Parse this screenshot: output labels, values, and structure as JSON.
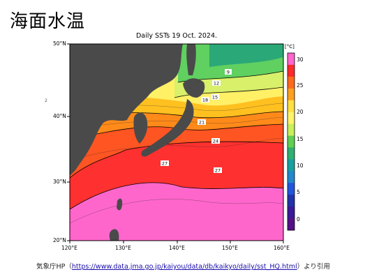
{
  "slide": {
    "title": "海面水温"
  },
  "map": {
    "title": "Daily SSTs 19 Oct. 2024.",
    "unit": "[°C]",
    "side_mark": "2",
    "lat_labels": [
      "50°N",
      "40°N",
      "30°N",
      "20°N"
    ],
    "lon_labels": [
      "120°E",
      "130°E",
      "140°E",
      "150°E",
      "160°E"
    ],
    "contour_labels": [
      "9",
      "12",
      "15",
      "18",
      "21",
      "24",
      "27",
      "27"
    ],
    "colorbar": {
      "ticks": [
        "30",
        "25",
        "20",
        "15",
        "10",
        "5",
        "0"
      ],
      "colors": [
        "#ff66cc",
        "#ff2a2a",
        "#ff6a1a",
        "#ffa020",
        "#ffe040",
        "#fff36a",
        "#c8f05a",
        "#5fd050",
        "#2fb070",
        "#18a0a0",
        "#2288cc",
        "#2255dd",
        "#2233aa",
        "#3a1a99",
        "#551088"
      ]
    },
    "colors": {
      "land": "#4a4a4a",
      "frame": "#000000"
    }
  },
  "source": {
    "prefix": "気象庁HP（",
    "url": "https://www.data.jma.go.jp/kaiyou/data/db/kaikyo/daily/sst_HQ.html",
    "suffix": "）より引用"
  }
}
